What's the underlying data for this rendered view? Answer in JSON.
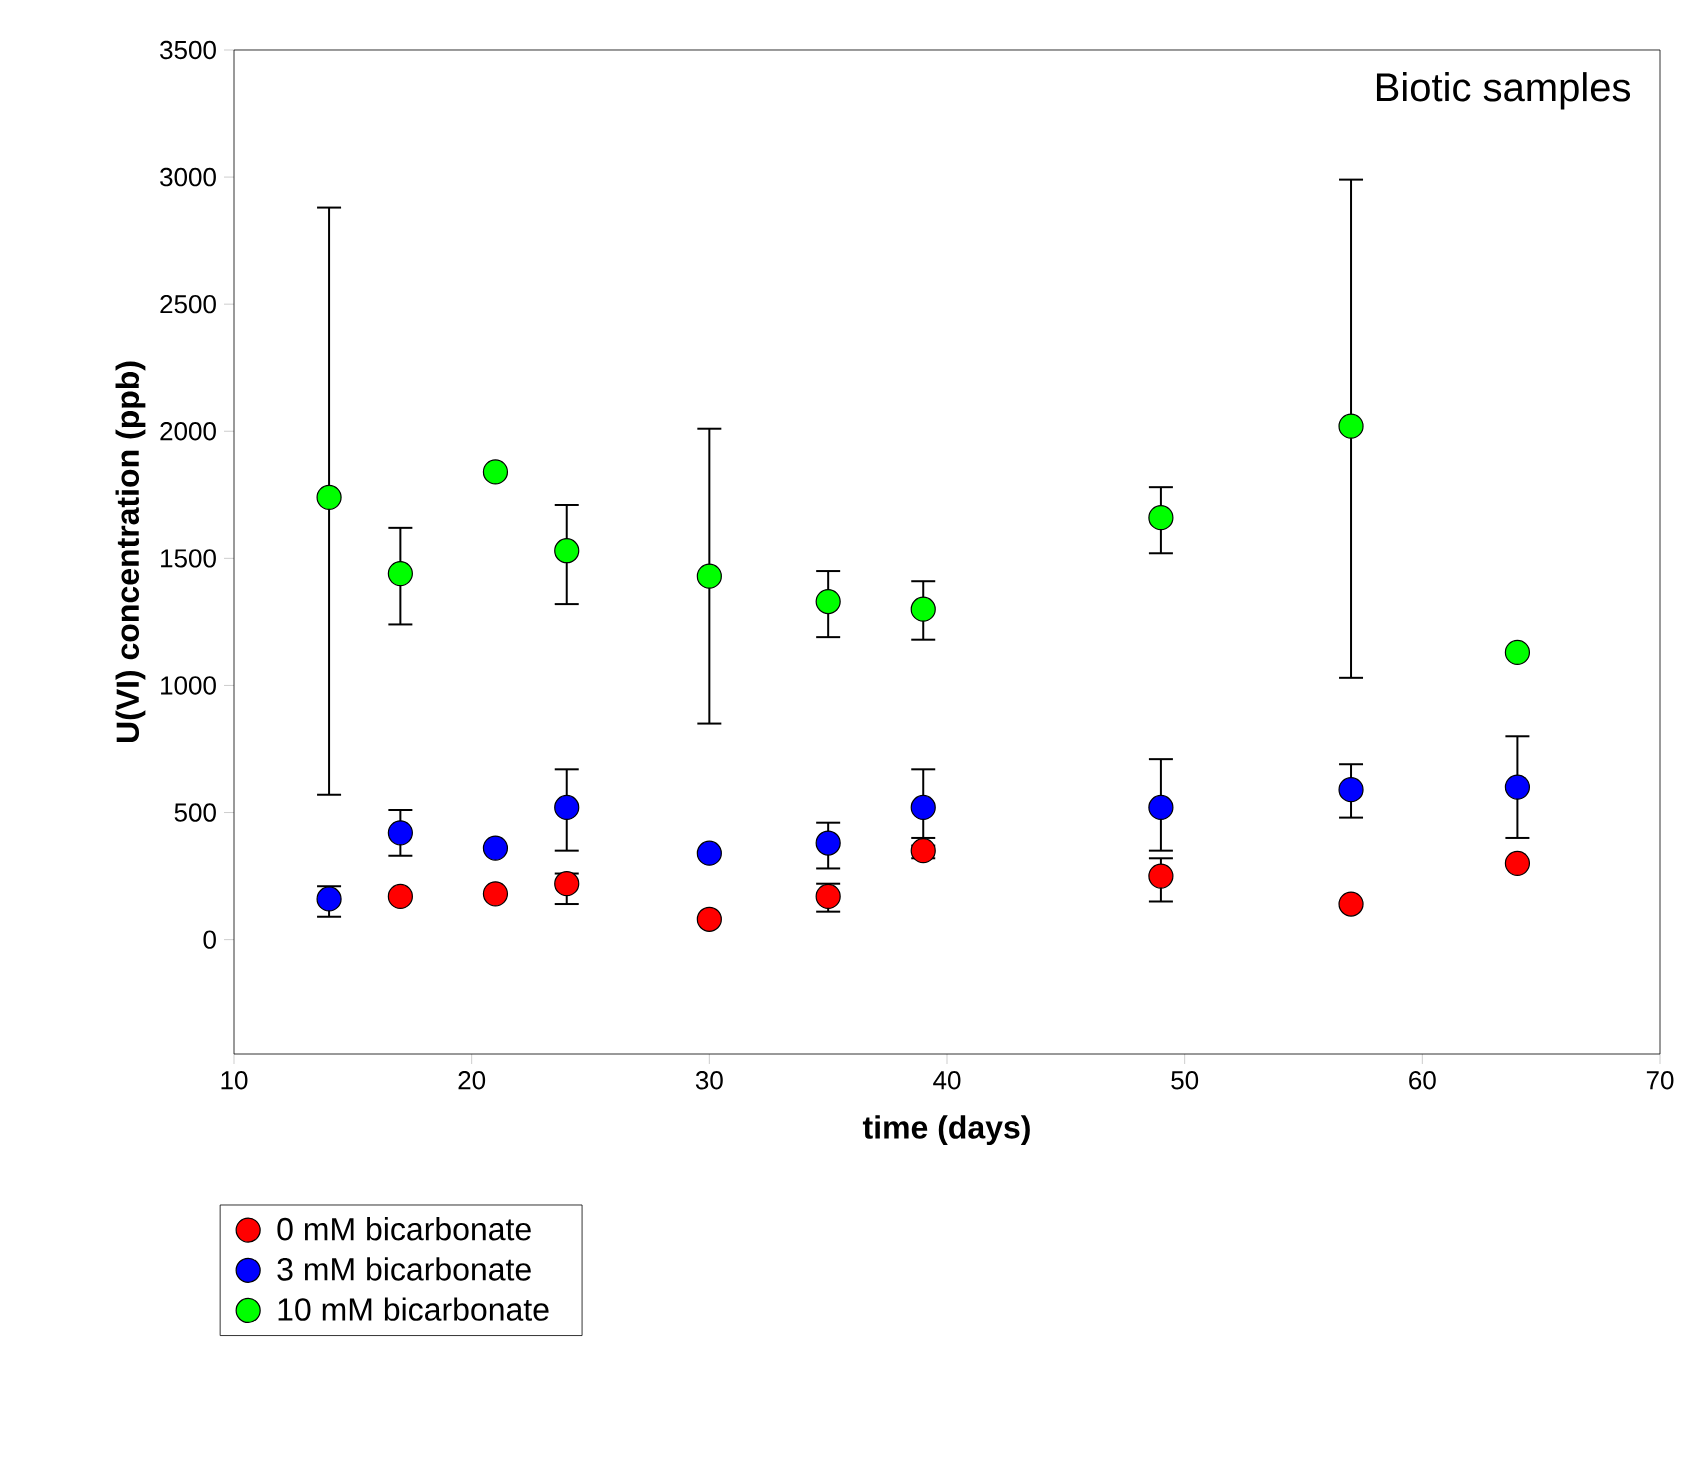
{
  "chart_data": {
    "type": "scatter",
    "xlabel": "time (days)",
    "ylabel": "U(VI) concentration (ppb)",
    "annotations": [
      "Biotic samples"
    ],
    "xlim": [
      10,
      70
    ],
    "xticks": [
      10,
      20,
      30,
      40,
      50,
      60,
      70
    ],
    "ylim": [
      -450,
      3500
    ],
    "yticks": [
      0,
      500,
      1000,
      1500,
      2000,
      2500,
      3000,
      3500
    ],
    "grid": false,
    "legend": "bottom left",
    "marker": "circle",
    "series": [
      {
        "name": "0 mM bicarbonate",
        "color": "#ff0000",
        "x": [
          17,
          21,
          24,
          30,
          35,
          39,
          49,
          57,
          64
        ],
        "values": [
          170,
          180,
          220,
          80,
          170,
          350,
          250,
          140,
          300
        ],
        "errors": [
          null,
          null,
          [
            140,
            260
          ],
          null,
          [
            110,
            220
          ],
          [
            320,
            370
          ],
          [
            150,
            320
          ],
          null,
          null
        ]
      },
      {
        "name": "3 mM bicarbonate",
        "color": "#0000ff",
        "x": [
          14,
          17,
          21,
          24,
          30,
          35,
          39,
          49,
          57,
          64
        ],
        "values": [
          160,
          420,
          360,
          520,
          340,
          380,
          520,
          520,
          590,
          600
        ],
        "errors": [
          [
            90,
            210
          ],
          [
            330,
            510
          ],
          null,
          [
            350,
            670
          ],
          null,
          [
            280,
            460
          ],
          [
            400,
            670
          ],
          [
            350,
            710
          ],
          [
            480,
            690
          ],
          [
            400,
            800
          ]
        ]
      },
      {
        "name": "10 mM bicarbonate",
        "color": "#00ff00",
        "x": [
          14,
          17,
          21,
          24,
          30,
          35,
          39,
          49,
          57,
          64
        ],
        "values": [
          1740,
          1440,
          1840,
          1530,
          1430,
          1330,
          1300,
          1660,
          2020,
          1130
        ],
        "errors": [
          [
            570,
            2880
          ],
          [
            1240,
            1620
          ],
          null,
          [
            1320,
            1710
          ],
          [
            850,
            2010
          ],
          [
            1190,
            1450
          ],
          [
            1180,
            1410
          ],
          [
            1520,
            1780
          ],
          [
            1030,
            2990
          ],
          null
        ]
      }
    ]
  }
}
